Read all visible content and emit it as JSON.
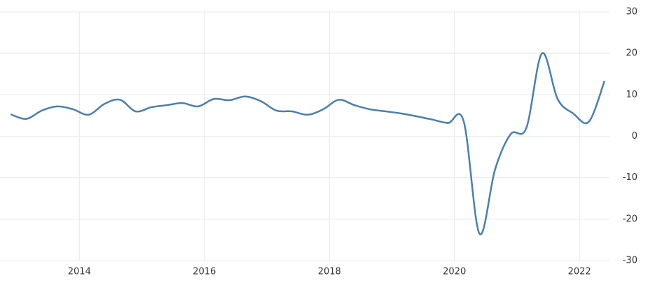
{
  "chart_data": {
    "type": "line",
    "x": [
      2012.9,
      2013.15,
      2013.4,
      2013.65,
      2013.9,
      2014.15,
      2014.4,
      2014.65,
      2014.9,
      2015.15,
      2015.4,
      2015.65,
      2015.9,
      2016.15,
      2016.4,
      2016.65,
      2016.9,
      2017.15,
      2017.4,
      2017.65,
      2017.9,
      2018.15,
      2018.4,
      2018.65,
      2018.9,
      2019.15,
      2019.4,
      2019.65,
      2019.9,
      2020.15,
      2020.4,
      2020.65,
      2020.9,
      2021.15,
      2021.4,
      2021.65,
      2021.9,
      2022.15,
      2022.4
    ],
    "series": [
      {
        "color": "#4a7fad",
        "values": [
          5.3,
          4.2,
          6.2,
          7.2,
          6.5,
          5.2,
          7.8,
          8.8,
          6.0,
          7.0,
          7.5,
          8.0,
          7.2,
          9.0,
          8.7,
          9.6,
          8.5,
          6.2,
          6.0,
          5.2,
          6.5,
          8.8,
          7.5,
          6.5,
          6.0,
          5.5,
          4.8,
          4.0,
          3.2,
          3.5,
          -23.5,
          -8.0,
          0.5,
          2.0,
          20.0,
          9.0,
          5.5,
          3.5,
          13.3
        ]
      }
    ],
    "xlim": [
      2012.73,
      2022.48
    ],
    "xticks": [
      2014,
      2016,
      2018,
      2020,
      2022
    ],
    "ylim": [
      -30,
      30
    ],
    "yticks": [
      30,
      20,
      10,
      0,
      -10,
      -20,
      -30
    ],
    "grid": true
  }
}
